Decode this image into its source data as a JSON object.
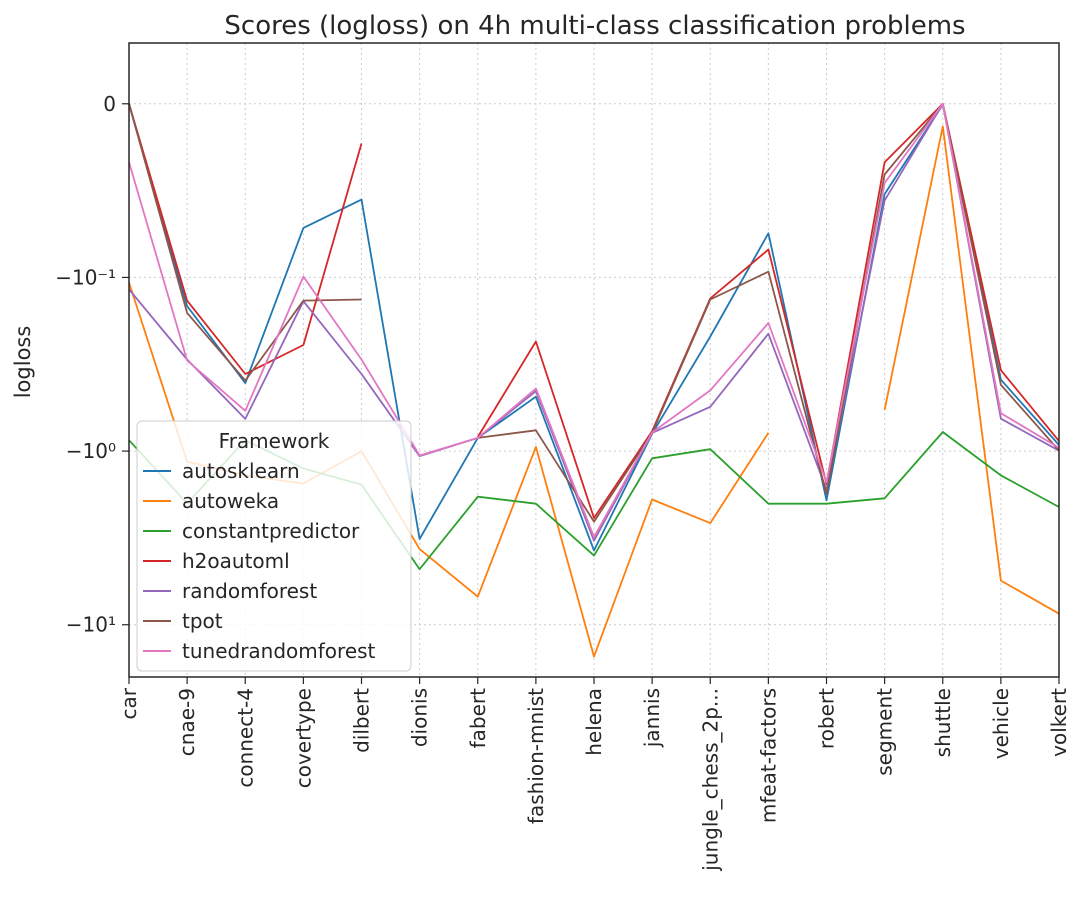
{
  "chart_data": {
    "type": "line",
    "title": "Scores (logloss) on 4h multi-class classification problems",
    "xlabel": "",
    "ylabel": "logloss",
    "yscale": "symlog",
    "yticks": [
      {
        "value": 0,
        "label": "0"
      },
      {
        "value": -0.1,
        "label": "−10⁻¹"
      },
      {
        "value": -1,
        "label": "−10⁰"
      },
      {
        "value": -10,
        "label": "−10¹"
      }
    ],
    "ylim": [
      -20,
      0.035
    ],
    "grid": true,
    "legend": {
      "title": "Framework",
      "placement": "lower-left"
    },
    "categories": [
      "car",
      "cnae-9",
      "connect-4",
      "covertype",
      "dilbert",
      "dionis",
      "fabert",
      "fashion-mnist",
      "helena",
      "jannis",
      "jungle_chess_2p...",
      "mfeat-factors",
      "robert",
      "segment",
      "shuttle",
      "vehicle",
      "volkert"
    ],
    "series": [
      {
        "name": "autosklearn",
        "color": "#1f77b4",
        "values": [
          0.0,
          -0.146,
          -0.406,
          -0.0715,
          -0.0552,
          -3.21,
          -0.84,
          -0.486,
          -3.73,
          -0.795,
          -0.219,
          -0.0746,
          -1.92,
          -0.052,
          -0.0005,
          -0.388,
          -0.923
        ]
      },
      {
        "name": "autoweka",
        "color": "#ff7f0e",
        "values": [
          -0.107,
          -1.15,
          -1.38,
          -1.54,
          -1.0,
          -3.67,
          -6.9,
          -0.946,
          -15.26,
          -1.9,
          -2.6,
          -0.785,
          null,
          -0.579,
          -0.013,
          -5.57,
          -8.64
        ]
      },
      {
        "name": "constantpredictor",
        "color": "#2ca02c",
        "values": [
          -0.866,
          -2.0,
          -0.866,
          -1.26,
          -1.56,
          -4.79,
          -1.83,
          -2.01,
          -4.0,
          -1.1,
          -0.976,
          -2.01,
          -2.01,
          -1.87,
          -0.776,
          -1.38,
          -2.1
        ]
      },
      {
        "name": "h2oautoml",
        "color": "#d62728",
        "values": [
          0.0,
          -0.136,
          -0.36,
          -0.245,
          -0.0229,
          null,
          -0.83,
          -0.234,
          -2.43,
          -0.768,
          -0.132,
          -0.0839,
          -1.55,
          -0.0337,
          0.0,
          -0.342,
          -0.876
        ]
      },
      {
        "name": "randomforest",
        "color": "#9467bd",
        "values": [
          -0.117,
          -0.297,
          -0.653,
          -0.137,
          -0.36,
          -1.07,
          -0.84,
          -0.451,
          -3.28,
          -0.786,
          -0.556,
          -0.211,
          -1.67,
          -0.0557,
          0.0,
          -0.651,
          -0.995
        ]
      },
      {
        "name": "tpot",
        "color": "#8c564b",
        "values": [
          0.0,
          -0.16,
          -0.393,
          -0.136,
          -0.134,
          null,
          -0.84,
          -0.759,
          -2.55,
          -0.786,
          -0.134,
          -0.0967,
          -1.77,
          -0.0407,
          0.0,
          -0.416,
          -0.993
        ]
      },
      {
        "name": "tunedrandomforest",
        "color": "#e377c2",
        "values": [
          -0.0336,
          -0.301,
          -0.586,
          -0.0995,
          -0.297,
          -1.06,
          -0.84,
          -0.436,
          -3.13,
          -0.782,
          -0.447,
          -0.183,
          -1.51,
          -0.0456,
          0.0,
          -0.605,
          -0.958
        ]
      }
    ]
  }
}
